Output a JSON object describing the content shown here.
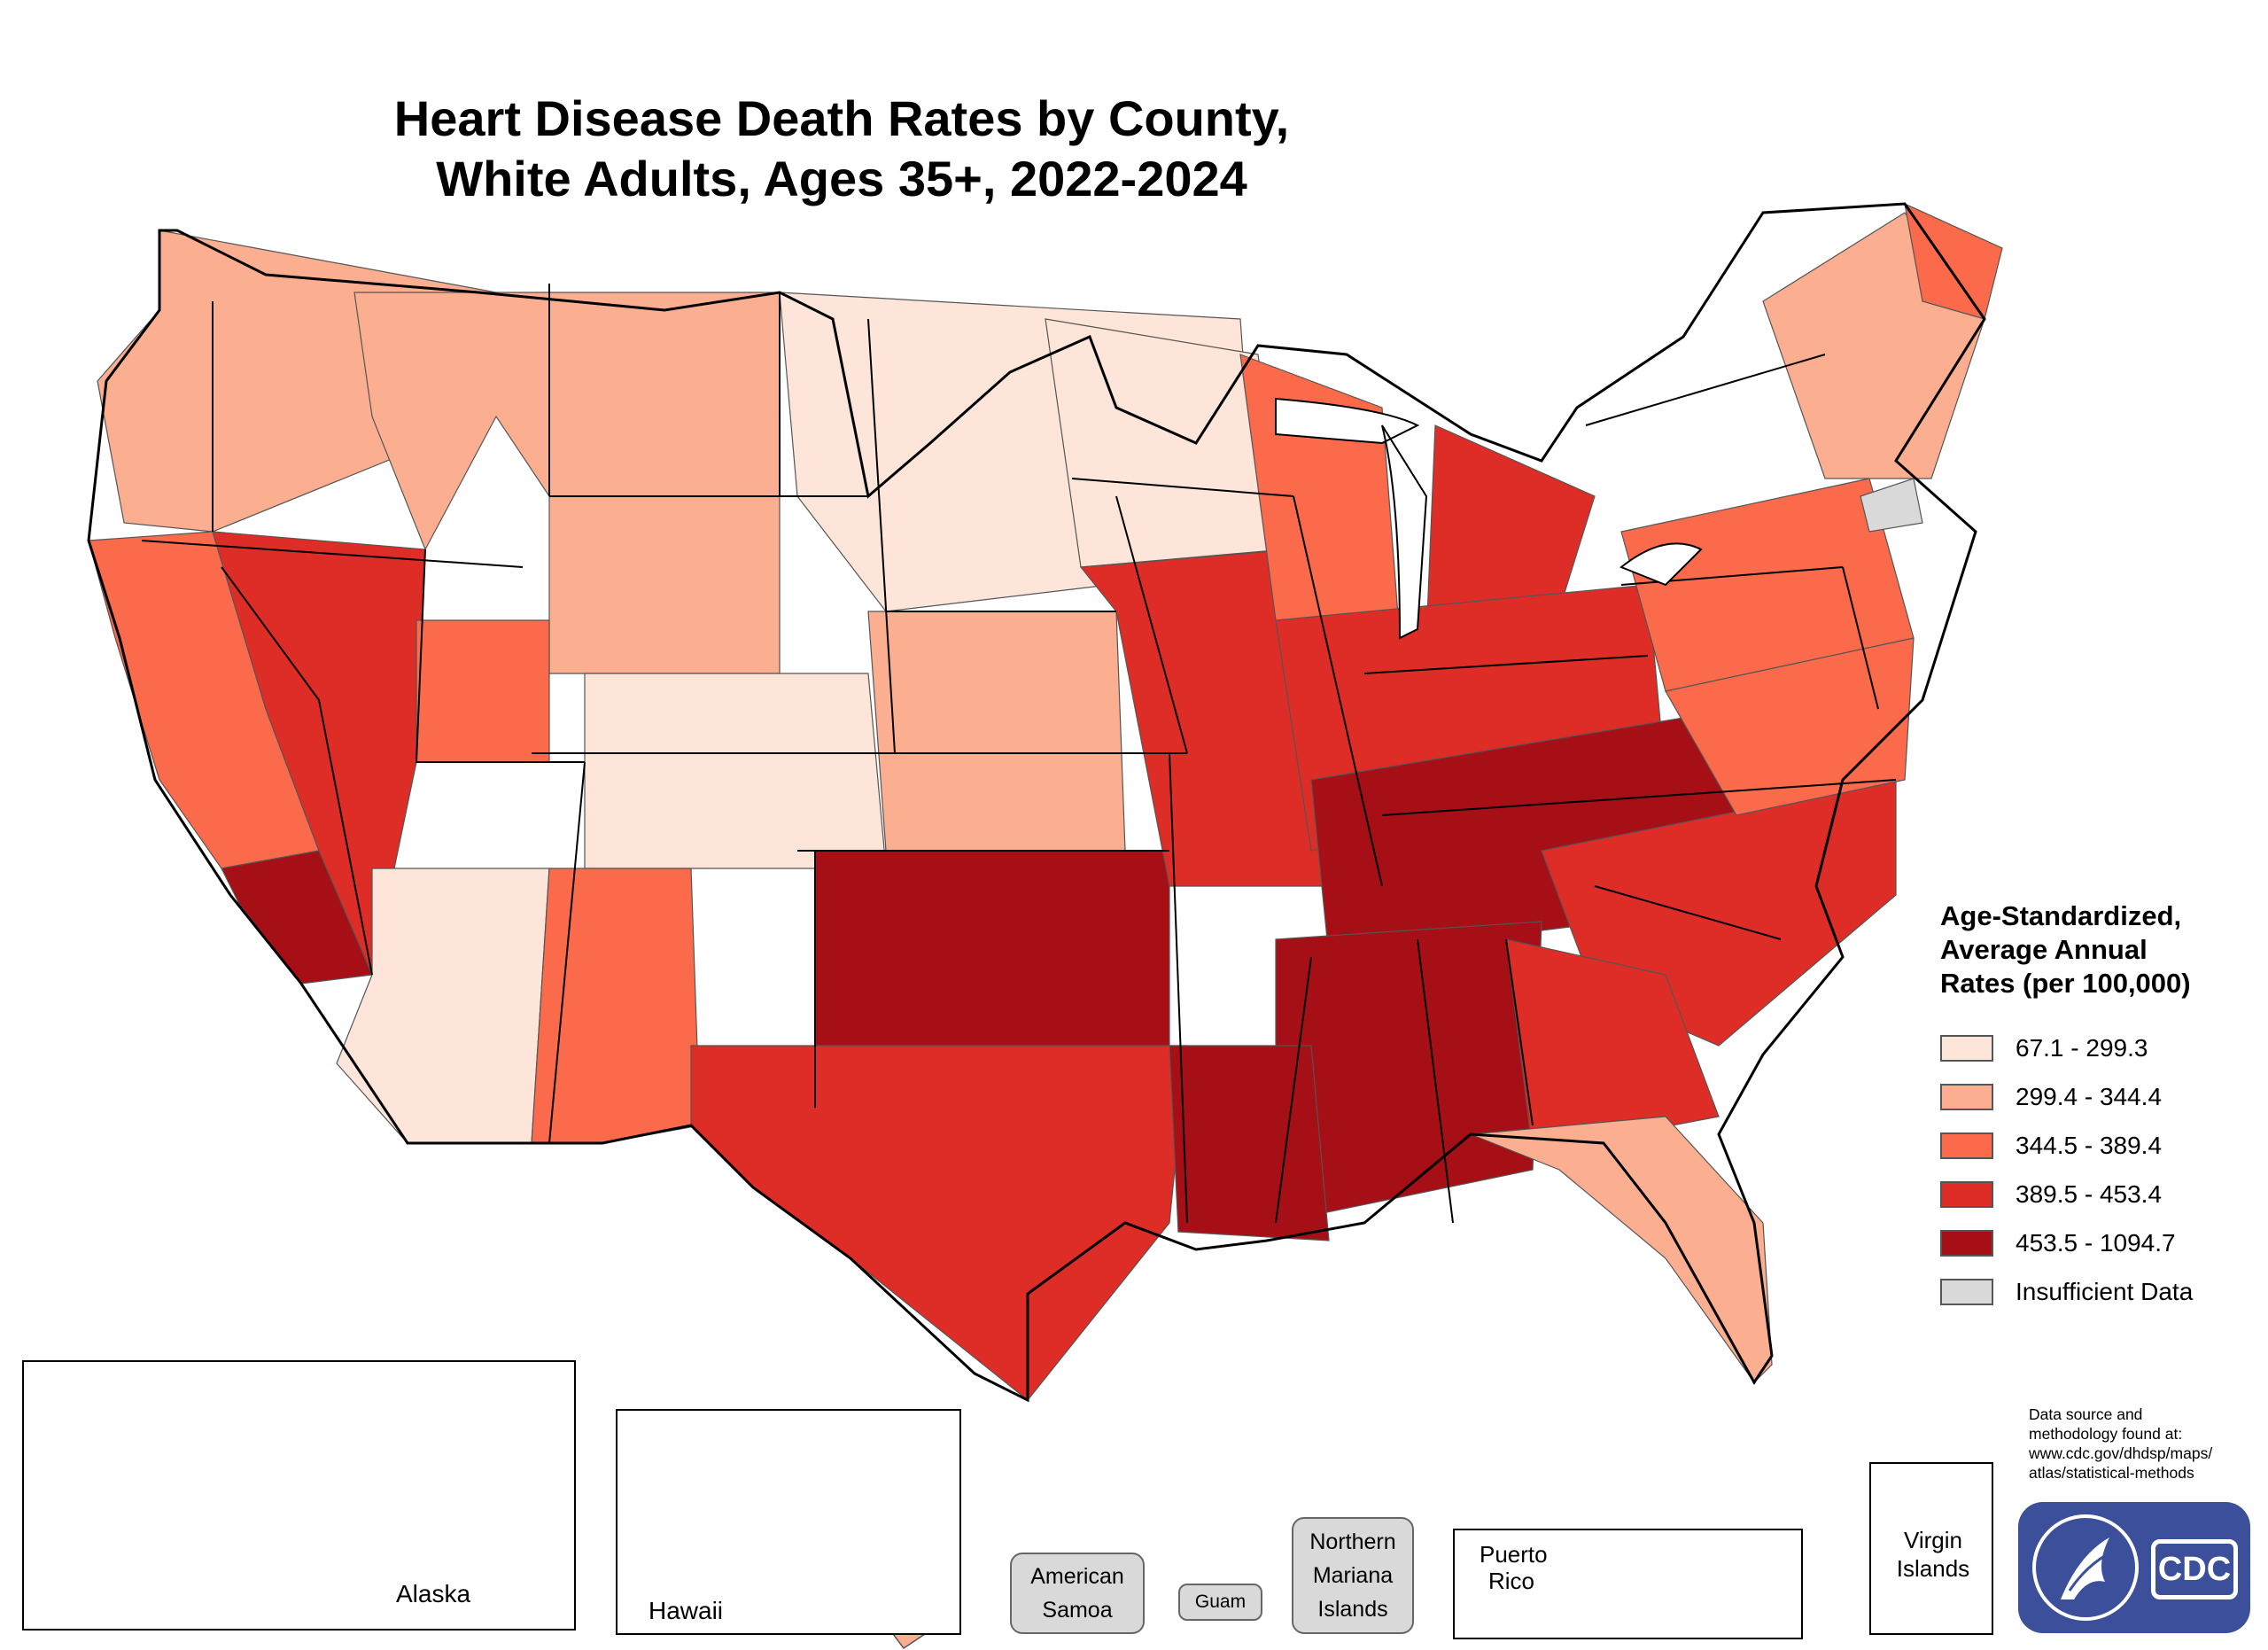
{
  "title": {
    "line1": "Heart Disease Death Rates by County,",
    "line2": "White Adults, Ages 35+, 2022-2024"
  },
  "legend": {
    "title_lines": [
      "Age-Standardized,",
      "Average Annual",
      "Rates (per 100,000)"
    ],
    "classes": [
      {
        "label": "67.1 - 299.3",
        "color": "#fee5d9"
      },
      {
        "label": "299.4 - 344.4",
        "color": "#fcae91"
      },
      {
        "label": "344.5 - 389.4",
        "color": "#fb6a4a"
      },
      {
        "label": "389.5 - 453.4",
        "color": "#de2d26"
      },
      {
        "label": "453.5 - 1094.7",
        "color": "#a50f15"
      },
      {
        "label": "Insufficient Data",
        "color": "#d9d9d9"
      }
    ]
  },
  "source": {
    "lines": [
      "Data source and",
      "methodology found at:",
      "www.cdc.gov/dhdsp/maps/",
      "atlas/statistical-methods"
    ]
  },
  "insets": {
    "alaska": "Alaska",
    "hawaii": "Hawaii",
    "puerto_rico_lines": [
      "Puerto",
      "Rico"
    ],
    "virgin_islands_lines": [
      "Virgin",
      "Islands"
    ]
  },
  "territories": {
    "american_samoa_lines": [
      "American",
      "Samoa"
    ],
    "guam": "Guam",
    "northern_mariana_lines": [
      "Northern",
      "Mariana",
      "Islands"
    ]
  },
  "logo": {
    "text": "CDC"
  },
  "map_regions": [
    {
      "name": "Pacific Northwest",
      "class": 1
    },
    {
      "name": "California",
      "class": 2
    },
    {
      "name": "Southern California",
      "class": 4
    },
    {
      "name": "Nevada",
      "class": 3
    },
    {
      "name": "Idaho and Montana",
      "class": 1
    },
    {
      "name": "Wyoming",
      "class": 1
    },
    {
      "name": "Utah",
      "class": 2
    },
    {
      "name": "Colorado",
      "class": 0
    },
    {
      "name": "Arizona",
      "class": 0
    },
    {
      "name": "New Mexico",
      "class": 2
    },
    {
      "name": "Northern Plains",
      "class": 0
    },
    {
      "name": "Kansas and Nebraska",
      "class": 1
    },
    {
      "name": "Oklahoma",
      "class": 4
    },
    {
      "name": "Texas",
      "class": 3
    },
    {
      "name": "Minnesota",
      "class": 0
    },
    {
      "name": "Iowa and Missouri",
      "class": 3
    },
    {
      "name": "Wisconsin",
      "class": 2
    },
    {
      "name": "Michigan",
      "class": 3
    },
    {
      "name": "Illinois Indiana Ohio",
      "class": 3
    },
    {
      "name": "Kentucky Tennessee",
      "class": 4
    },
    {
      "name": "Deep South",
      "class": 4
    },
    {
      "name": "Louisiana",
      "class": 4
    },
    {
      "name": "Carolinas",
      "class": 3
    },
    {
      "name": "Georgia",
      "class": 3
    },
    {
      "name": "Florida",
      "class": 1
    },
    {
      "name": "Virginia",
      "class": 2
    },
    {
      "name": "Mid-Atlantic",
      "class": 2
    },
    {
      "name": "New England",
      "class": 1
    },
    {
      "name": "Maine",
      "class": 2
    },
    {
      "name": "Connecticut",
      "class": 5
    }
  ]
}
